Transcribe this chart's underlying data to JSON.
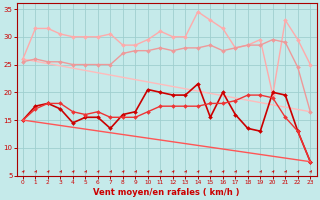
{
  "xlabel": "Vent moyen/en rafales ( km/h )",
  "xlim": [
    -0.5,
    23.5
  ],
  "ylim": [
    5,
    36
  ],
  "yticks": [
    5,
    10,
    15,
    20,
    25,
    30,
    35
  ],
  "xticks": [
    0,
    1,
    2,
    3,
    4,
    5,
    6,
    7,
    8,
    9,
    10,
    11,
    12,
    13,
    14,
    15,
    16,
    17,
    18,
    19,
    20,
    21,
    22,
    23
  ],
  "background_color": "#c5eaea",
  "grid_color": "#9fcfcf",
  "lines": [
    {
      "x": [
        0,
        23
      ],
      "y": [
        26.0,
        16.5
      ],
      "color": "#ffbbbb",
      "lw": 1.0,
      "marker": null,
      "ms": 0
    },
    {
      "x": [
        0,
        1,
        2,
        3,
        4,
        5,
        6,
        7,
        8,
        9,
        10,
        11,
        12,
        13,
        14,
        15,
        16,
        17,
        18,
        19,
        20,
        21,
        22,
        23
      ],
      "y": [
        26.0,
        31.5,
        31.5,
        30.5,
        30.0,
        30.0,
        30.0,
        30.5,
        28.5,
        28.5,
        29.5,
        31.0,
        30.0,
        30.0,
        34.5,
        33.0,
        31.5,
        28.0,
        28.5,
        29.5,
        19.5,
        33.0,
        29.5,
        25.0
      ],
      "color": "#ffaaaa",
      "lw": 1.0,
      "marker": "D",
      "ms": 2.0
    },
    {
      "x": [
        0,
        1,
        2,
        3,
        4,
        5,
        6,
        7,
        8,
        9,
        10,
        11,
        12,
        13,
        14,
        15,
        16,
        17,
        18,
        19,
        20,
        21,
        22,
        23
      ],
      "y": [
        25.5,
        26.0,
        25.5,
        25.5,
        25.0,
        25.0,
        25.0,
        25.0,
        27.0,
        27.5,
        27.5,
        28.0,
        27.5,
        28.0,
        28.0,
        28.5,
        27.5,
        28.0,
        28.5,
        28.5,
        29.5,
        29.0,
        24.5,
        16.5
      ],
      "color": "#ee9999",
      "lw": 1.0,
      "marker": "D",
      "ms": 2.0
    },
    {
      "x": [
        0,
        1,
        2,
        3,
        4,
        5,
        6,
        7,
        8,
        9,
        10,
        11,
        12,
        13,
        14,
        15,
        16,
        17,
        18,
        19,
        20,
        21,
        22,
        23
      ],
      "y": [
        15.0,
        17.5,
        18.0,
        17.0,
        14.5,
        15.5,
        15.5,
        13.5,
        16.0,
        16.5,
        20.5,
        20.0,
        19.5,
        19.5,
        21.5,
        15.5,
        20.0,
        16.0,
        13.5,
        13.0,
        20.0,
        19.5,
        13.0,
        7.5
      ],
      "color": "#cc0000",
      "lw": 1.2,
      "marker": "D",
      "ms": 2.0
    },
    {
      "x": [
        0,
        1,
        2,
        3,
        4,
        5,
        6,
        7,
        8,
        9,
        10,
        11,
        12,
        13,
        14,
        15,
        16,
        17,
        18,
        19,
        20,
        21,
        22,
        23
      ],
      "y": [
        15.0,
        17.0,
        18.0,
        18.0,
        16.5,
        16.0,
        16.5,
        15.5,
        15.5,
        15.5,
        16.5,
        17.5,
        17.5,
        17.5,
        17.5,
        18.0,
        18.0,
        18.5,
        19.5,
        19.5,
        19.0,
        15.5,
        13.0,
        7.5
      ],
      "color": "#ee3333",
      "lw": 1.0,
      "marker": "D",
      "ms": 2.0
    },
    {
      "x": [
        0,
        23
      ],
      "y": [
        15.0,
        7.5
      ],
      "color": "#ff5555",
      "lw": 1.0,
      "marker": null,
      "ms": 0
    }
  ],
  "arrow_color": "#cc0000"
}
